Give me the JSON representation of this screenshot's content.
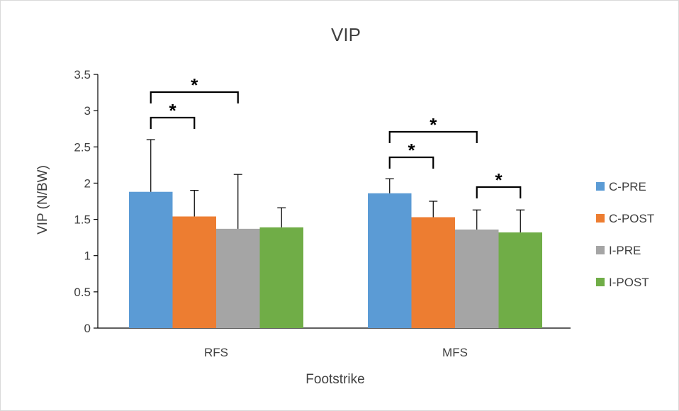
{
  "chart_data": {
    "type": "bar",
    "title": "VIP",
    "xlabel": "Footstrike",
    "ylabel": "VIP (N/BW)",
    "categories": [
      "RFS",
      "MFS"
    ],
    "ylim": [
      0,
      3.5
    ],
    "yticks": [
      "0",
      "0.5",
      "1",
      "1.5",
      "2",
      "2.5",
      "3",
      "3.5"
    ],
    "grid": false,
    "legend_position": "right",
    "series": [
      {
        "name": "C-PRE",
        "color": "#5b9bd5",
        "values": [
          1.88,
          1.86
        ],
        "error": [
          0.72,
          0.2
        ]
      },
      {
        "name": "C-POST",
        "color": "#ed7d31",
        "values": [
          1.54,
          1.53
        ],
        "error": [
          0.36,
          0.22
        ]
      },
      {
        "name": "I-PRE",
        "color": "#a5a5a5",
        "values": [
          1.37,
          1.36
        ],
        "error": [
          0.75,
          0.27
        ]
      },
      {
        "name": "I-POST",
        "color": "#70ad47",
        "values": [
          1.39,
          1.32
        ],
        "error": [
          0.27,
          0.31
        ]
      }
    ],
    "significance": [
      {
        "category": 0,
        "from": 0,
        "to": 1,
        "label": "*"
      },
      {
        "category": 0,
        "from": 0,
        "to": 2,
        "label": "*"
      },
      {
        "category": 1,
        "from": 0,
        "to": 1,
        "label": "*"
      },
      {
        "category": 1,
        "from": 0,
        "to": 2,
        "label": "*"
      },
      {
        "category": 1,
        "from": 2,
        "to": 3,
        "label": "*"
      }
    ]
  }
}
